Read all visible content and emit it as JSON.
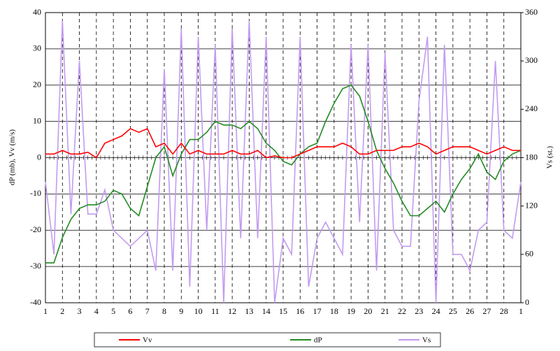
{
  "chart_data": {
    "type": "line",
    "y_label": "dP (mb), Vv (m/s)",
    "y2_label": "Vs (st.)",
    "x": [
      1,
      1.5,
      2,
      2.5,
      3,
      3.5,
      4,
      4.5,
      5,
      5.5,
      6,
      6.5,
      7,
      7.5,
      8,
      8.5,
      9,
      9.5,
      10,
      10.5,
      11,
      11.5,
      12,
      12.5,
      13,
      13.5,
      14,
      14.5,
      15,
      15.5,
      16,
      16.5,
      17,
      17.5,
      18,
      18.5,
      19,
      19.5,
      20,
      20.5,
      21,
      21.5,
      22,
      22.5,
      23,
      23.5,
      24,
      24.5,
      25,
      25.5,
      26,
      26.5,
      27,
      27.5,
      28,
      28.5,
      29
    ],
    "xlim": [
      1,
      29
    ],
    "xticks": [
      1,
      2,
      3,
      4,
      5,
      6,
      7,
      8,
      9,
      10,
      11,
      12,
      13,
      14,
      15,
      16,
      17,
      18,
      19,
      20,
      21,
      22,
      23,
      24,
      25,
      26,
      27,
      28,
      {
        "value": 29,
        "label": "1"
      }
    ],
    "ylim": [
      -40,
      40
    ],
    "yticks": [
      -40,
      -30,
      -20,
      -10,
      0,
      10,
      20,
      30,
      40
    ],
    "y2lim": [
      0,
      360
    ],
    "y2ticks": [
      0,
      60,
      120,
      180,
      240,
      300,
      360
    ],
    "grid": true,
    "legend": "bottom",
    "series": [
      {
        "name": "Vv",
        "color": "#ff0000",
        "axis": "y",
        "values": [
          1,
          1,
          2,
          1,
          1,
          1.5,
          0,
          4,
          5,
          6,
          8,
          7,
          8,
          3,
          4,
          1,
          4,
          1,
          2,
          1,
          1,
          1,
          2,
          1,
          1,
          2,
          0,
          0.5,
          0,
          0,
          1,
          2,
          3,
          3,
          3,
          4,
          3,
          1,
          1,
          2,
          2,
          2,
          3,
          3,
          4,
          3,
          1,
          2,
          3,
          3,
          3,
          2,
          1,
          2,
          3,
          2,
          2
        ]
      },
      {
        "name": "dP",
        "color": "#228b22",
        "axis": "y",
        "values": [
          -29,
          -29,
          -22,
          -17,
          -14,
          -13,
          -13,
          -12,
          -9,
          -10,
          -14,
          -16,
          -8,
          0,
          3,
          -5,
          1,
          5,
          5,
          7,
          10,
          9,
          9,
          8,
          10,
          8,
          4,
          2,
          -1,
          -2,
          1,
          3,
          4,
          10,
          15,
          19,
          20,
          17,
          10,
          2,
          -3,
          -7,
          -12,
          -16,
          -16,
          -14,
          -12,
          -15,
          -10,
          -6,
          -3,
          1,
          -4,
          -6,
          -1,
          1,
          2
        ]
      },
      {
        "name": "Vs",
        "color": "#c39bf0",
        "axis": "y2",
        "values": [
          150,
          60,
          350,
          110,
          300,
          110,
          110,
          140,
          90,
          80,
          70,
          80,
          90,
          40,
          290,
          40,
          340,
          20,
          330,
          90,
          320,
          0,
          340,
          80,
          350,
          80,
          330,
          0,
          80,
          60,
          330,
          20,
          80,
          100,
          80,
          60,
          320,
          100,
          320,
          40,
          310,
          90,
          70,
          70,
          250,
          330,
          0,
          320,
          60,
          60,
          40,
          90,
          100,
          300,
          90,
          80,
          150
        ]
      }
    ]
  }
}
